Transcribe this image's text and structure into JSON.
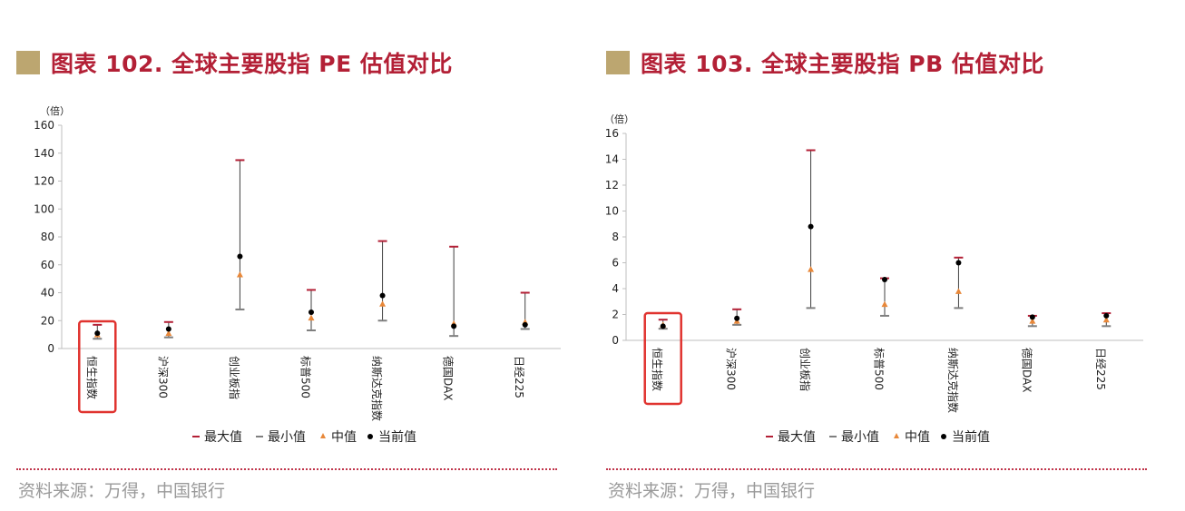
{
  "colors": {
    "title": "#b32036",
    "title_square": "#bca670",
    "max_marker": "#b32036",
    "min_marker": "#7f7f7f",
    "median_marker": "#e8883a",
    "current_marker": "#000000",
    "highlight_box": "#e0332f",
    "divider": "#c0344a",
    "source_text": "#9a9a9a"
  },
  "panels": [
    {
      "title": "图表 102. 全球主要股指 PE 估值对比",
      "source": "资料来源：万得，中国银行",
      "chart_data": {
        "type": "scatter",
        "unit_label": "（倍）",
        "categories": [
          "恒生指数",
          "沪深300",
          "创业板指",
          "标普500",
          "纳斯达克指数",
          "德国DAX",
          "日经225"
        ],
        "ylim": [
          0,
          160
        ],
        "yticks": [
          0,
          20,
          40,
          60,
          80,
          100,
          120,
          140,
          160
        ],
        "grid": false,
        "legend_position": "bottom",
        "highlight_category": "恒生指数",
        "series": [
          {
            "name": "最大值",
            "values": [
              17,
              19,
              135,
              42,
              77,
              73,
              40
            ]
          },
          {
            "name": "最小值",
            "values": [
              7,
              8,
              28,
              13,
              20,
              9,
              14
            ]
          },
          {
            "name": "中值",
            "values": [
              10,
              11,
              53,
              22,
              32,
              18,
              19
            ]
          },
          {
            "name": "当前值",
            "values": [
              11,
              14,
              66,
              26,
              38,
              16,
              17
            ]
          }
        ]
      }
    },
    {
      "title": "图表 103. 全球主要股指 PB 估值对比",
      "source": "资料来源：万得，中国银行",
      "chart_data": {
        "type": "scatter",
        "unit_label": "（倍）",
        "categories": [
          "恒生指数",
          "沪深300",
          "创业板指",
          "标普500",
          "纳斯达克指数",
          "德国DAX",
          "日经225"
        ],
        "ylim": [
          0,
          16
        ],
        "yticks": [
          0,
          2,
          4,
          6,
          8,
          10,
          12,
          14,
          16
        ],
        "grid": false,
        "legend_position": "bottom",
        "highlight_category": "恒生指数",
        "series": [
          {
            "name": "最大值",
            "values": [
              1.6,
              2.4,
              14.7,
              4.8,
              6.4,
              1.9,
              2.1
            ]
          },
          {
            "name": "最小值",
            "values": [
              0.9,
              1.2,
              2.5,
              1.9,
              2.5,
              1.1,
              1.1
            ]
          },
          {
            "name": "中值",
            "values": [
              1.2,
              1.5,
              5.5,
              2.8,
              3.8,
              1.5,
              1.6
            ]
          },
          {
            "name": "当前值",
            "values": [
              1.1,
              1.7,
              8.8,
              4.7,
              6.0,
              1.8,
              1.9
            ]
          }
        ]
      }
    }
  ]
}
